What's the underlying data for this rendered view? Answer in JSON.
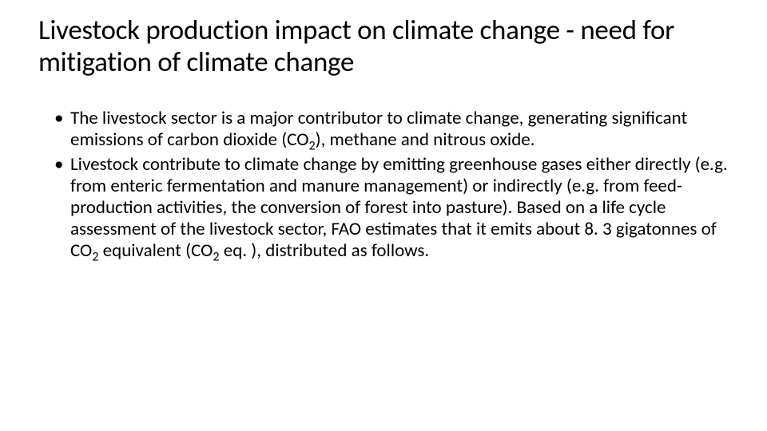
{
  "slide": {
    "title": "Livestock production impact on climate change - need for mitigation of climate change",
    "bullets": [
      {
        "pre": "The livestock sector is a major contributor to climate change, generating significant emissions of carbon dioxide (CO",
        "sub1": "2",
        "post": "), methane and nitrous oxide."
      },
      {
        "pre": "Livestock contribute to climate change by emitting greenhouse gases either directly (e.g. from enteric fermentation and manure management) or indirectly (e.g. from feed-production activities, the conversion of forest into pasture). Based on a life cycle assessment of the livestock sector, FAO estimates that it emits about 8. 3 gigatonnes of CO",
        "sub1": "2",
        "mid": " equivalent (CO",
        "sub2": "2",
        "post": " eq. ), distributed as follows."
      }
    ]
  },
  "style": {
    "background_color": "#ffffff",
    "text_color": "#000000",
    "title_fontsize": 35,
    "body_fontsize": 23,
    "font_family": "Calibri"
  }
}
